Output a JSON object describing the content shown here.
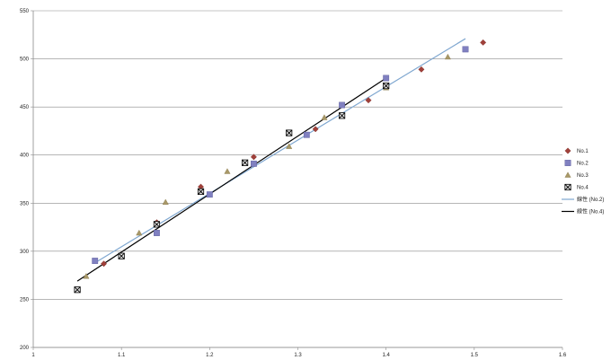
{
  "chart_data": {
    "type": "scatter",
    "title": "",
    "xlabel": "",
    "ylabel": "",
    "xlim": [
      1,
      1.6
    ],
    "ylim": [
      200,
      550
    ],
    "x_ticks": [
      "1",
      "1.1",
      "1.2",
      "1.3",
      "1.4",
      "1.5",
      "1.6"
    ],
    "y_ticks": [
      "200",
      "250",
      "300",
      "350",
      "400",
      "450",
      "500",
      "550"
    ],
    "grid": "horizontal",
    "legend_position": "right",
    "series": [
      {
        "name": "No.1",
        "marker": "diamond",
        "color": "#a0403a",
        "points": [
          [
            1.08,
            287
          ],
          [
            1.14,
            330
          ],
          [
            1.19,
            367
          ],
          [
            1.25,
            398
          ],
          [
            1.32,
            427
          ],
          [
            1.38,
            457
          ],
          [
            1.44,
            489
          ],
          [
            1.51,
            517
          ]
        ]
      },
      {
        "name": "No.2",
        "marker": "square",
        "color": "#8080c0",
        "points": [
          [
            1.07,
            290
          ],
          [
            1.14,
            319
          ],
          [
            1.2,
            359
          ],
          [
            1.25,
            391
          ],
          [
            1.31,
            421
          ],
          [
            1.35,
            452
          ],
          [
            1.4,
            480
          ],
          [
            1.49,
            510
          ]
        ]
      },
      {
        "name": "No.3",
        "marker": "triangle",
        "color": "#a89868",
        "points": [
          [
            1.06,
            274
          ],
          [
            1.12,
            319
          ],
          [
            1.15,
            351
          ],
          [
            1.22,
            383
          ],
          [
            1.29,
            409
          ],
          [
            1.33,
            439
          ],
          [
            1.4,
            470
          ],
          [
            1.47,
            502
          ]
        ]
      },
      {
        "name": "No.4",
        "marker": "x-square",
        "color": "#000000",
        "points": [
          [
            1.05,
            260
          ],
          [
            1.1,
            295
          ],
          [
            1.14,
            328
          ],
          [
            1.19,
            362
          ],
          [
            1.24,
            392
          ],
          [
            1.29,
            423
          ],
          [
            1.35,
            441
          ],
          [
            1.4,
            472
          ]
        ]
      }
    ],
    "trendlines": [
      {
        "name": "線性 (No.2)",
        "color": "#7fa7d0",
        "from": [
          1.07,
          288
        ],
        "to": [
          1.49,
          521
        ]
      },
      {
        "name": "線性 (No.4)",
        "color": "#000000",
        "from": [
          1.05,
          269
        ],
        "to": [
          1.4,
          480
        ]
      }
    ]
  }
}
